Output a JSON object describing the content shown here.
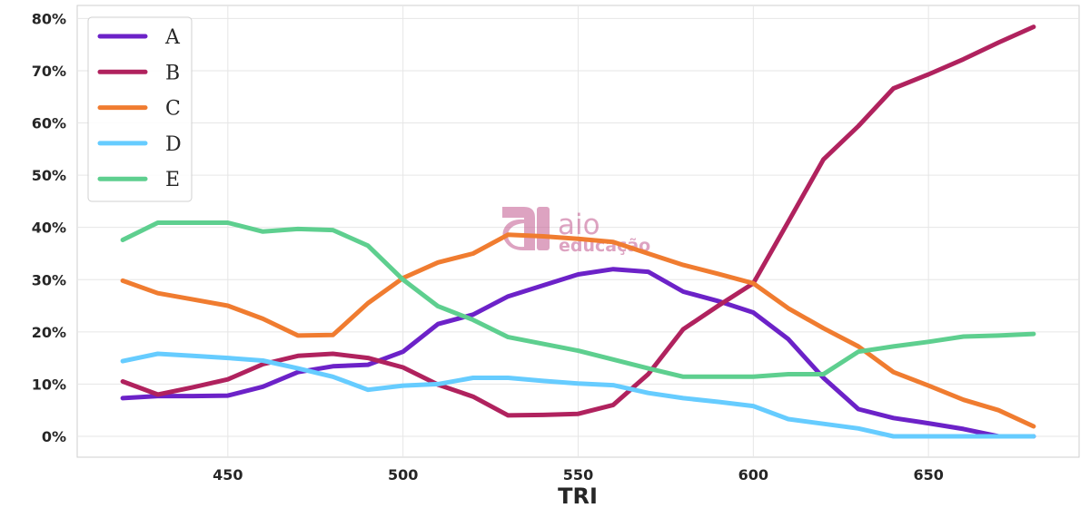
{
  "chart_data": {
    "type": "line",
    "title": "",
    "xlabel": "TRI",
    "ylabel": "",
    "xlim": [
      407,
      693
    ],
    "ylim": [
      -0.04,
      0.825
    ],
    "x_ticks": [
      450,
      500,
      550,
      600,
      650
    ],
    "y_ticks": [
      {
        "value": 0.0,
        "label": "0%"
      },
      {
        "value": 0.1,
        "label": "10%"
      },
      {
        "value": 0.2,
        "label": "20%"
      },
      {
        "value": 0.3,
        "label": "30%"
      },
      {
        "value": 0.4,
        "label": "40%"
      },
      {
        "value": 0.5,
        "label": "50%"
      },
      {
        "value": 0.6,
        "label": "60%"
      },
      {
        "value": 0.7,
        "label": "70%"
      },
      {
        "value": 0.8,
        "label": "80%"
      }
    ],
    "grid": true,
    "legend_position": "top-left",
    "x": [
      420,
      430,
      440,
      450,
      460,
      470,
      480,
      490,
      500,
      510,
      520,
      530,
      540,
      550,
      560,
      570,
      580,
      590,
      600,
      610,
      620,
      630,
      640,
      650,
      660,
      670,
      680
    ],
    "series": [
      {
        "name": "A",
        "color": "#6c22c8",
        "values": [
          0.073,
          0.077,
          0.077,
          0.078,
          0.095,
          0.123,
          0.134,
          0.137,
          0.162,
          0.215,
          0.233,
          0.268,
          0.289,
          0.31,
          0.32,
          0.315,
          0.277,
          0.259,
          0.237,
          0.186,
          0.112,
          0.052,
          0.035,
          0.025,
          0.014,
          0.0,
          0.0
        ]
      },
      {
        "name": "B",
        "color": "#b0225e",
        "values": [
          0.105,
          0.08,
          0.094,
          0.109,
          0.138,
          0.154,
          0.158,
          0.15,
          0.132,
          0.099,
          0.076,
          0.04,
          0.041,
          0.043,
          0.06,
          0.119,
          0.205,
          0.25,
          0.293,
          0.411,
          0.53,
          0.594,
          0.666,
          0.693,
          0.722,
          0.754,
          0.784
        ]
      },
      {
        "name": "C",
        "color": "#f07c30",
        "values": [
          0.298,
          0.274,
          0.262,
          0.25,
          0.225,
          0.193,
          0.194,
          0.255,
          0.303,
          0.333,
          0.35,
          0.386,
          0.383,
          0.378,
          0.372,
          0.35,
          0.328,
          0.311,
          0.293,
          0.245,
          0.207,
          0.172,
          0.123,
          0.097,
          0.07,
          0.05,
          0.019
        ]
      },
      {
        "name": "D",
        "color": "#66ccff",
        "values": [
          0.144,
          0.158,
          0.154,
          0.15,
          0.145,
          0.13,
          0.114,
          0.089,
          0.097,
          0.1,
          0.112,
          0.112,
          0.106,
          0.101,
          0.098,
          0.083,
          0.073,
          0.066,
          0.058,
          0.033,
          0.024,
          0.015,
          0.0,
          0.0,
          0.0,
          0.0,
          0.0
        ]
      },
      {
        "name": "E",
        "color": "#5ecf8f",
        "values": [
          0.376,
          0.409,
          0.409,
          0.409,
          0.392,
          0.397,
          0.395,
          0.365,
          0.3,
          0.249,
          0.223,
          0.19,
          0.177,
          0.164,
          0.147,
          0.13,
          0.114,
          0.114,
          0.114,
          0.119,
          0.119,
          0.162,
          0.172,
          0.181,
          0.191,
          0.193,
          0.196
        ]
      }
    ]
  },
  "watermark": {
    "brand": "aio",
    "subtitle": "educação"
  }
}
